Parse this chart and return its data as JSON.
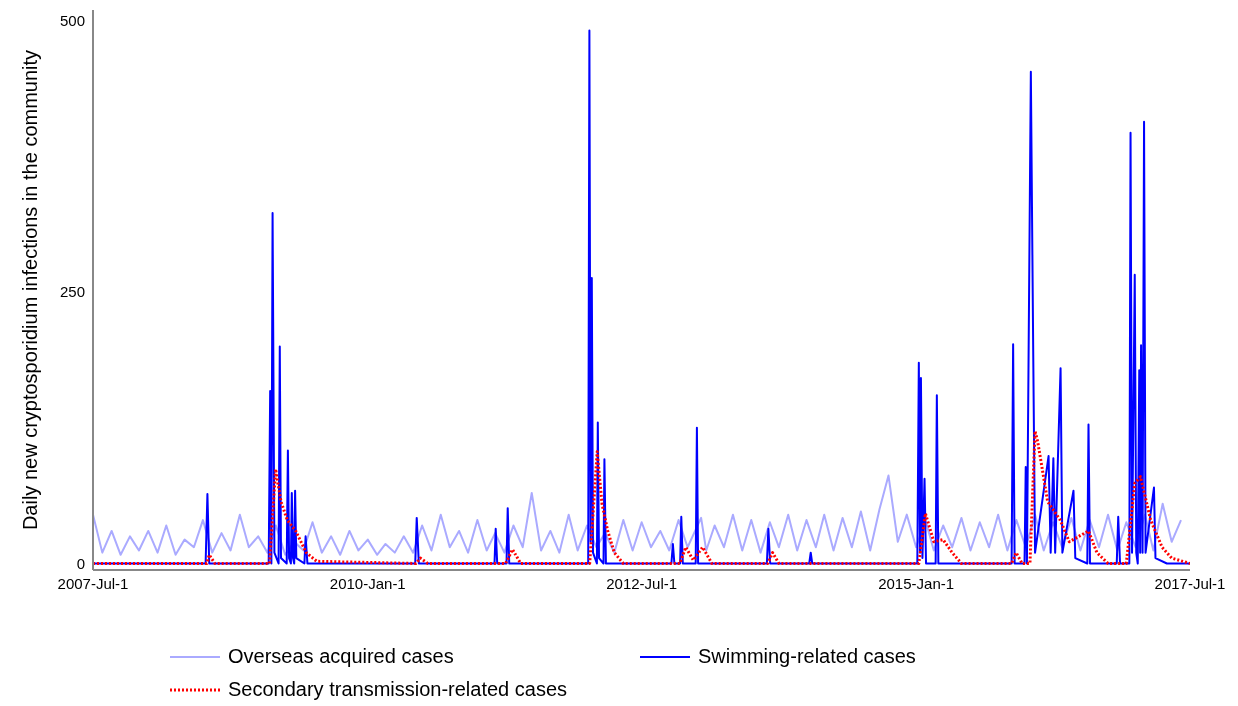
{
  "chart_data": {
    "type": "line",
    "ylabel": "Daily new cryptosporidium infections in the community",
    "xlim": [
      "2007-07-01",
      "2017-07-01"
    ],
    "xticks": [
      {
        "value": "2007-07-01",
        "label": "2007-Jul-1"
      },
      {
        "value": "2010-01-01",
        "label": "2010-Jan-1"
      },
      {
        "value": "2012-07-01",
        "label": "2012-Jul-1"
      },
      {
        "value": "2015-01-01",
        "label": "2015-Jan-1"
      },
      {
        "value": "2017-07-01",
        "label": "2017-Jul-1"
      }
    ],
    "ylim": [
      -6,
      510
    ],
    "yticks": [
      0,
      250,
      500
    ],
    "legend": "bottom",
    "marker": "none",
    "series": [
      {
        "name": "Overseas acquired cases",
        "color": "#aaaaff",
        "line_style": "solid",
        "x": [
          "2007-07",
          "2007-08",
          "2007-09",
          "2007-10",
          "2007-11",
          "2007-12",
          "2008-01",
          "2008-02",
          "2008-03",
          "2008-04",
          "2008-05",
          "2008-06",
          "2008-07",
          "2008-08",
          "2008-09",
          "2008-10",
          "2008-11",
          "2008-12",
          "2009-01",
          "2009-02",
          "2009-03",
          "2009-04",
          "2009-05",
          "2009-06",
          "2009-07",
          "2009-08",
          "2009-09",
          "2009-10",
          "2009-11",
          "2009-12",
          "2010-01",
          "2010-02",
          "2010-03",
          "2010-04",
          "2010-05",
          "2010-06",
          "2010-07",
          "2010-08",
          "2010-09",
          "2010-10",
          "2010-11",
          "2010-12",
          "2011-01",
          "2011-02",
          "2011-03",
          "2011-04",
          "2011-05",
          "2011-06",
          "2011-07",
          "2011-08",
          "2011-09",
          "2011-10",
          "2011-11",
          "2011-12",
          "2012-01",
          "2012-02",
          "2012-03",
          "2012-04",
          "2012-05",
          "2012-06",
          "2012-07",
          "2012-08",
          "2012-09",
          "2012-10",
          "2012-11",
          "2012-12",
          "2013-01-15",
          "2013-02",
          "2013-03",
          "2013-04",
          "2013-05",
          "2013-06",
          "2013-07",
          "2013-08",
          "2013-09",
          "2013-10",
          "2013-11",
          "2013-12",
          "2014-01",
          "2014-02",
          "2014-03",
          "2014-04",
          "2014-05",
          "2014-06",
          "2014-07",
          "2014-08",
          "2014-09",
          "2014-10",
          "2014-11",
          "2014-12",
          "2015-01",
          "2015-02",
          "2015-03",
          "2015-04",
          "2015-05",
          "2015-06",
          "2015-07",
          "2015-08",
          "2015-09",
          "2015-10",
          "2015-11",
          "2015-12",
          "2016-01",
          "2016-02",
          "2016-03",
          "2016-04",
          "2016-05",
          "2016-06",
          "2016-07",
          "2016-08",
          "2016-09",
          "2016-10",
          "2016-11",
          "2016-12",
          "2017-01",
          "2017-02",
          "2017-03",
          "2017-04",
          "2017-05",
          "2017-06"
        ],
        "values": [
          45,
          10,
          30,
          8,
          25,
          12,
          30,
          10,
          35,
          8,
          22,
          15,
          40,
          10,
          28,
          12,
          45,
          15,
          25,
          10,
          35,
          8,
          20,
          12,
          38,
          10,
          25,
          8,
          30,
          12,
          22,
          8,
          18,
          10,
          25,
          10,
          35,
          12,
          45,
          15,
          30,
          10,
          40,
          12,
          28,
          10,
          35,
          15,
          65,
          12,
          30,
          10,
          45,
          12,
          35,
          15,
          28,
          10,
          40,
          12,
          38,
          15,
          30,
          12,
          40,
          15,
          42,
          12,
          35,
          15,
          45,
          12,
          40,
          10,
          38,
          15,
          45,
          12,
          40,
          15,
          45,
          12,
          42,
          15,
          48,
          12,
          50,
          81,
          20,
          45,
          15,
          40,
          12,
          35,
          15,
          42,
          12,
          38,
          15,
          45,
          12,
          40,
          15,
          45,
          12,
          38,
          15,
          42,
          12,
          40,
          15,
          45,
          12,
          38,
          15,
          45,
          12,
          55,
          20,
          40
        ]
      },
      {
        "name": "Swimming-related cases",
        "color": "#0000ff",
        "line_style": "solid",
        "x": [
          "2007-07-01",
          "2008-07-10",
          "2008-07-16",
          "2008-07-22",
          "2009-02-05",
          "2009-02-10",
          "2009-02-14",
          "2009-02-18",
          "2009-02-24",
          "2009-03-10",
          "2009-03-14",
          "2009-03-18",
          "2009-04-06",
          "2009-04-10",
          "2009-04-14",
          "2009-04-20",
          "2009-04-23",
          "2009-04-27",
          "2009-05-01",
          "2009-05-04",
          "2009-05-08",
          "2009-06-04",
          "2009-06-08",
          "2009-06-14",
          "2010-06-08",
          "2010-06-13",
          "2010-06-20",
          "2011-02-27",
          "2011-03-03",
          "2011-03-08",
          "2011-04-08",
          "2011-04-12",
          "2011-04-17",
          "2012-01-05",
          "2012-01-09",
          "2012-01-13",
          "2012-01-17",
          "2012-01-21",
          "2012-02-03",
          "2012-02-06",
          "2012-02-10",
          "2012-02-25",
          "2012-02-28",
          "2012-03-04",
          "2012-10-08",
          "2012-10-13",
          "2012-10-18",
          "2012-11-06",
          "2012-11-10",
          "2012-11-15",
          "2012-12-28",
          "2013-01-01",
          "2013-01-05",
          "2013-08-22",
          "2013-08-27",
          "2013-09-02",
          "2014-01-10",
          "2014-01-15",
          "2014-01-20",
          "2015-01-05",
          "2015-01-10",
          "2015-01-14",
          "2015-01-17",
          "2015-01-22",
          "2015-01-29",
          "2015-02-03",
          "2015-03-07",
          "2015-03-11",
          "2015-03-16",
          "2015-11-15",
          "2015-11-20",
          "2015-11-25",
          "2015-12-28",
          "2016-01-01",
          "2016-01-05",
          "2016-01-18",
          "2016-01-26",
          "2016-02-01",
          "2016-03-17",
          "2016-03-24",
          "2016-04-02",
          "2016-04-08",
          "2016-04-26",
          "2016-05-02",
          "2016-06-08",
          "2016-06-14",
          "2016-07-24",
          "2016-07-28",
          "2016-08-02",
          "2016-10-30",
          "2016-11-04",
          "2016-11-10",
          "2016-12-11",
          "2016-12-15",
          "2016-12-20",
          "2016-12-29",
          "2017-01-03",
          "2017-01-08",
          "2017-01-13",
          "2017-01-16",
          "2017-01-19",
          "2017-01-24",
          "2017-01-29",
          "2017-02-03",
          "2017-03-03",
          "2017-03-08",
          "2017-04-15",
          "2017-07-01"
        ],
        "values": [
          0,
          0,
          64,
          0,
          0,
          159,
          0,
          323,
          10,
          0,
          200,
          5,
          0,
          104,
          5,
          0,
          65,
          5,
          0,
          67,
          5,
          0,
          25,
          0,
          0,
          42,
          0,
          0,
          32,
          0,
          0,
          51,
          0,
          0,
          491,
          20,
          263,
          10,
          0,
          130,
          5,
          0,
          96,
          0,
          0,
          18,
          0,
          0,
          43,
          0,
          0,
          125,
          0,
          0,
          32,
          0,
          0,
          10,
          0,
          0,
          185,
          10,
          171,
          5,
          78,
          0,
          0,
          155,
          0,
          0,
          202,
          0,
          0,
          89,
          0,
          453,
          192,
          10,
          99,
          10,
          97,
          10,
          180,
          10,
          67,
          5,
          0,
          128,
          0,
          0,
          43,
          0,
          0,
          397,
          10,
          266,
          10,
          0,
          178,
          10,
          201,
          10,
          407,
          10,
          70,
          5,
          0,
          0
        ]
      },
      {
        "name": "Secondary transmission-related cases",
        "color": "#ff0000",
        "line_style": "dotted",
        "x": [
          "2007-07-01",
          "2008-07-14",
          "2008-07-22",
          "2008-08-10",
          "2009-02-08",
          "2009-02-28",
          "2009-03-18",
          "2009-04-08",
          "2009-05-06",
          "2009-06-10",
          "2009-07-15",
          "2010-06-10",
          "2010-06-25",
          "2010-07-20",
          "2011-04-05",
          "2011-04-28",
          "2011-05-25",
          "2012-01-10",
          "2012-02-04",
          "2012-02-20",
          "2012-03-10",
          "2012-04-01",
          "2012-05-01",
          "2012-11-05",
          "2012-11-25",
          "2012-12-20",
          "2013-01-20",
          "2013-02-20",
          "2013-08-25",
          "2013-09-10",
          "2013-10-01",
          "2015-01-10",
          "2015-02-01",
          "2015-03-01",
          "2015-04-01",
          "2015-05-01",
          "2015-06-01",
          "2015-11-15",
          "2015-11-30",
          "2015-12-20",
          "2016-01-15",
          "2016-02-01",
          "2016-02-10",
          "2016-03-14",
          "2016-04-25",
          "2016-05-25",
          "2016-07-28",
          "2016-08-25",
          "2016-10-01",
          "2016-12-01",
          "2016-12-29",
          "2017-01-17",
          "2017-02-20",
          "2017-03-30",
          "2017-05-01",
          "2017-07-01"
        ],
        "values": [
          0,
          0,
          8,
          0,
          0,
          87,
          57,
          40,
          30,
          10,
          2,
          0,
          5,
          0,
          0,
          13,
          0,
          0,
          103,
          55,
          30,
          10,
          0,
          0,
          15,
          3,
          15,
          0,
          0,
          10,
          0,
          0,
          46,
          20,
          22,
          10,
          0,
          0,
          10,
          0,
          0,
          122,
          112,
          57,
          40,
          20,
          30,
          10,
          0,
          0,
          74,
          80,
          40,
          15,
          5,
          0
        ]
      }
    ]
  }
}
